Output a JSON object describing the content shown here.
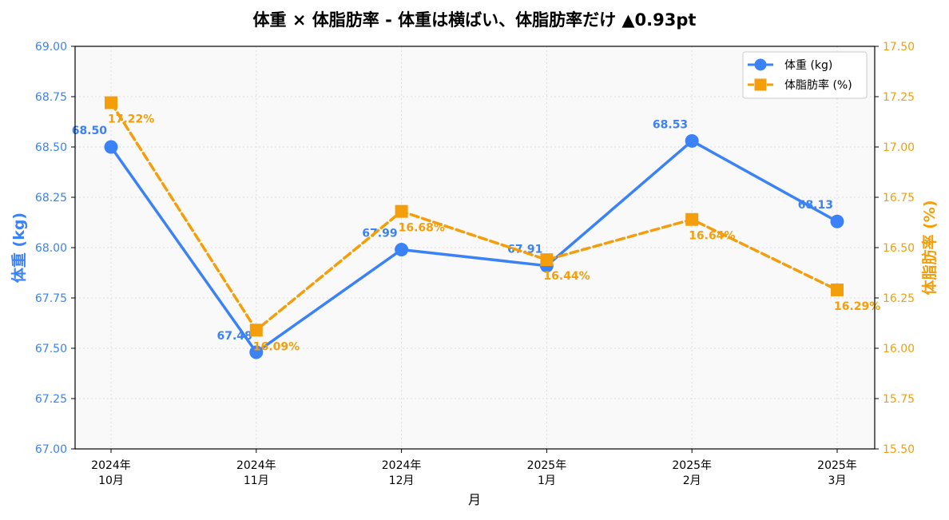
{
  "chart_data": {
    "type": "line",
    "title": "体重 × 体脂肪率 - 体重は横ばい、体脂肪率だけ ▲0.93pt",
    "xlabel": "月",
    "ylabel_left": "体重 (kg)",
    "ylabel_right": "体脂肪率 (%)",
    "categories": [
      [
        "2024年",
        "10月"
      ],
      [
        "2024年",
        "11月"
      ],
      [
        "2024年",
        "12月"
      ],
      [
        "2025年",
        "1月"
      ],
      [
        "2025年",
        "2月"
      ],
      [
        "2025年",
        "3月"
      ]
    ],
    "ylim_left": [
      67.0,
      69.0
    ],
    "yticks_left": [
      "67.00",
      "67.25",
      "67.50",
      "67.75",
      "68.00",
      "68.25",
      "68.50",
      "68.75",
      "69.00"
    ],
    "ylim_right": [
      15.5,
      17.5
    ],
    "yticks_right": [
      "15.50",
      "15.75",
      "16.00",
      "16.25",
      "16.50",
      "16.75",
      "17.00",
      "17.25",
      "17.50"
    ],
    "grid": true,
    "legend_position": "top-right",
    "series": [
      {
        "name": "体重 (kg)",
        "axis": "left",
        "color": "#3b82f6",
        "marker": "circle",
        "line_style": "solid",
        "values": [
          68.5,
          67.48,
          67.99,
          67.91,
          68.53,
          68.13
        ],
        "labels": [
          "68.50",
          "67.48",
          "67.99",
          "67.91",
          "68.53",
          "68.13"
        ]
      },
      {
        "name": "体脂肪率 (%)",
        "axis": "right",
        "color": "#f59e0b",
        "marker": "square",
        "line_style": "dashed",
        "values": [
          17.22,
          16.09,
          16.68,
          16.44,
          16.64,
          16.29
        ],
        "labels": [
          "17.22%",
          "16.09%",
          "16.68%",
          "16.44%",
          "16.64%",
          "16.29%"
        ]
      }
    ]
  }
}
